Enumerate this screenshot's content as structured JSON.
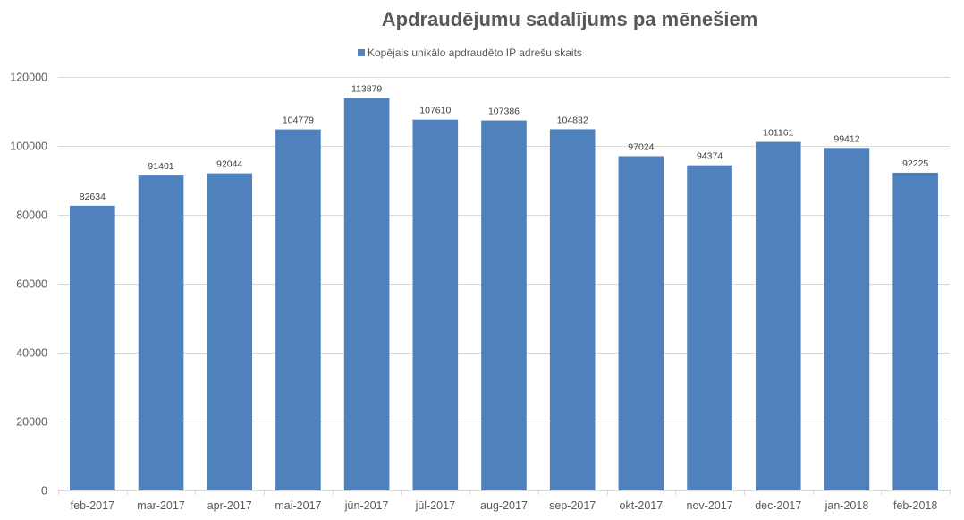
{
  "chart_data": {
    "type": "bar",
    "title": "Apdraudējumu sadalījums pa mēnešiem",
    "xlabel": "",
    "ylabel": "",
    "ylim": [
      0,
      120000
    ],
    "yticks": [
      0,
      20000,
      40000,
      60000,
      80000,
      100000,
      120000
    ],
    "ytick_labels": [
      "0",
      "20000",
      "40000",
      "60000",
      "80000",
      "100000",
      "120000"
    ],
    "grid": true,
    "legend_position": "top",
    "categories": [
      "feb-2017",
      "mar-2017",
      "apr-2017",
      "mai-2017",
      "jūn-2017",
      "jūl-2017",
      "aug-2017",
      "sep-2017",
      "okt-2017",
      "nov-2017",
      "dec-2017",
      "jan-2018",
      "feb-2018"
    ],
    "series": [
      {
        "name": "Kopējais unikālo apdraudēto IP adrešu skaits",
        "color": "#4f81bd",
        "values": [
          82634,
          91401,
          92044,
          104779,
          113879,
          107610,
          107386,
          104832,
          97024,
          94374,
          101161,
          99412,
          92225
        ],
        "value_labels": [
          "82634",
          "91401",
          "92044",
          "104779",
          "113879",
          "107610",
          "107386",
          "104832",
          "97024",
          "94374",
          "101161",
          "99412",
          "92225"
        ]
      }
    ]
  }
}
